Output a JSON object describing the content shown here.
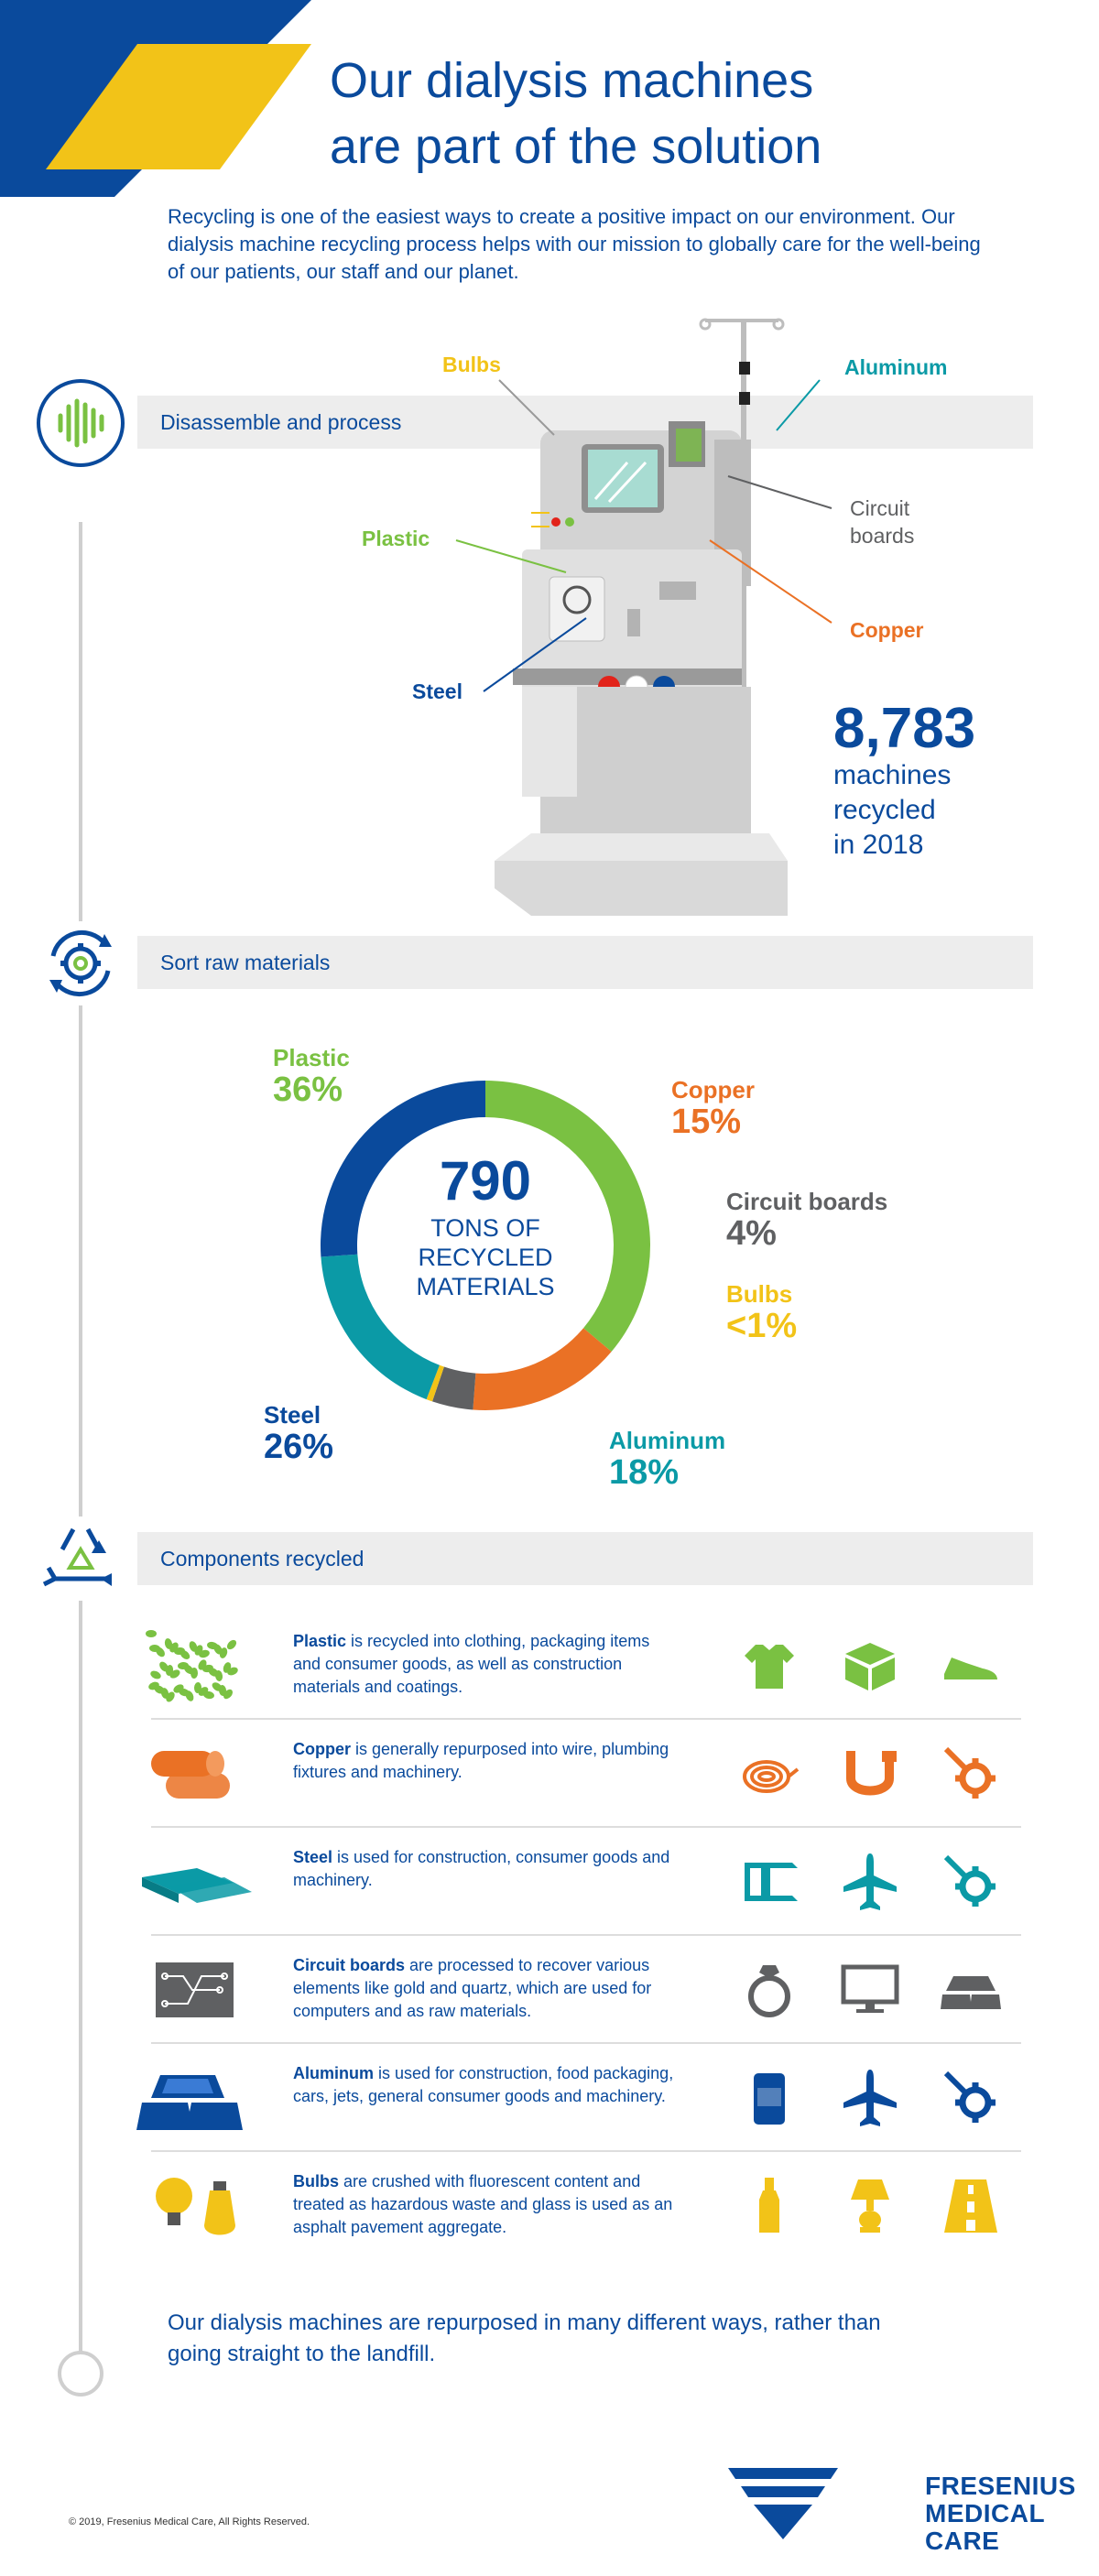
{
  "title_line1": "Our dialysis machines",
  "title_line2": "are part of the solution",
  "intro": "Recycling is one of the easiest ways to create a positive impact on our environment. Our dialysis machine recycling process helps with our mission to globally care for the well-being of our patients, our staff and our planet.",
  "steps": {
    "step1": "Disassemble and process",
    "step2": "Sort raw materials",
    "step3": "Components recycled"
  },
  "machine_callouts": {
    "bulbs": "Bulbs",
    "aluminum": "Aluminum",
    "plastic": "Plastic",
    "circuit_line1": "Circuit",
    "circuit_line2": "boards",
    "copper": "Copper",
    "steel": "Steel"
  },
  "machines_recycled": {
    "number": "8,783",
    "line1": "machines",
    "line2": "recycled",
    "line3": "in 2018"
  },
  "donut": {
    "center_number": "790",
    "center_line1": "TONS OF",
    "center_line2": "RECYCLED",
    "center_line3": "MATERIALS",
    "segments": [
      {
        "name": "Plastic",
        "pct_label": "36%",
        "value": 36,
        "color": "#7ac142"
      },
      {
        "name": "Copper",
        "pct_label": "15%",
        "value": 15,
        "color": "#ea7125"
      },
      {
        "name": "Circuit boards",
        "pct_label": "4%",
        "value": 4,
        "color": "#5f6062"
      },
      {
        "name": "Bulbs",
        "pct_label": "<1%",
        "value": 0.6,
        "color": "#f2c318"
      },
      {
        "name": "Aluminum",
        "pct_label": "18%",
        "value": 18,
        "color": "#0b9aa6"
      },
      {
        "name": "Steel",
        "pct_label": "26%",
        "value": 26,
        "color": "#0a4a9c"
      }
    ]
  },
  "components": [
    {
      "bold": "Plastic",
      "text": " is recycled into clothing, packaging items and consumer goods, as well as construction materials and coatings.",
      "color": "#7ac142",
      "icons": [
        "tshirt-icon",
        "box-icon",
        "shoe-icon"
      ]
    },
    {
      "bold": "Copper",
      "text": " is generally repurposed into wire, plumbing fixtures and machinery.",
      "color": "#ea7125",
      "icons": [
        "wire-coil-icon",
        "pipe-icon",
        "machinery-icon"
      ]
    },
    {
      "bold": "Steel",
      "text": " is used for construction, consumer goods and machinery.",
      "color": "#0b9aa6",
      "icons": [
        "beam-icon",
        "airplane-icon",
        "machinery-icon"
      ]
    },
    {
      "bold": "Circuit boards",
      "text": " are processed to recover various elements like gold and quartz, which are used for computers and as raw materials.",
      "color": "#5f6062",
      "icons": [
        "ring-icon",
        "monitor-icon",
        "gold-bars-icon"
      ]
    },
    {
      "bold": "Aluminum",
      "text": " is used for construction, food packaging, cars, jets, general consumer goods and machinery.",
      "color": "#0a4a9c",
      "icons": [
        "can-icon",
        "airplane-icon",
        "machinery-icon"
      ]
    },
    {
      "bold": "Bulbs",
      "text": " are crushed with fluorescent content and treated as hazardous waste and glass is used as an asphalt pavement aggregate.",
      "color": "#f2c318",
      "icons": [
        "bottle-icon",
        "lamp-icon",
        "road-icon"
      ]
    }
  ],
  "closing": "Our dialysis machines are repurposed in many different ways, rather than going straight to the landfill.",
  "copyright": "© 2019, Fresenius Medical Care, All Rights Reserved.",
  "brand_line1": "FRESENIUS",
  "brand_line2": "MEDICAL CARE",
  "colors": {
    "blue": "#0a4a9c",
    "yellow": "#f2c318",
    "green": "#7ac142",
    "orange": "#ea7125",
    "teal": "#0b9aa6",
    "gray": "#5f6062"
  }
}
